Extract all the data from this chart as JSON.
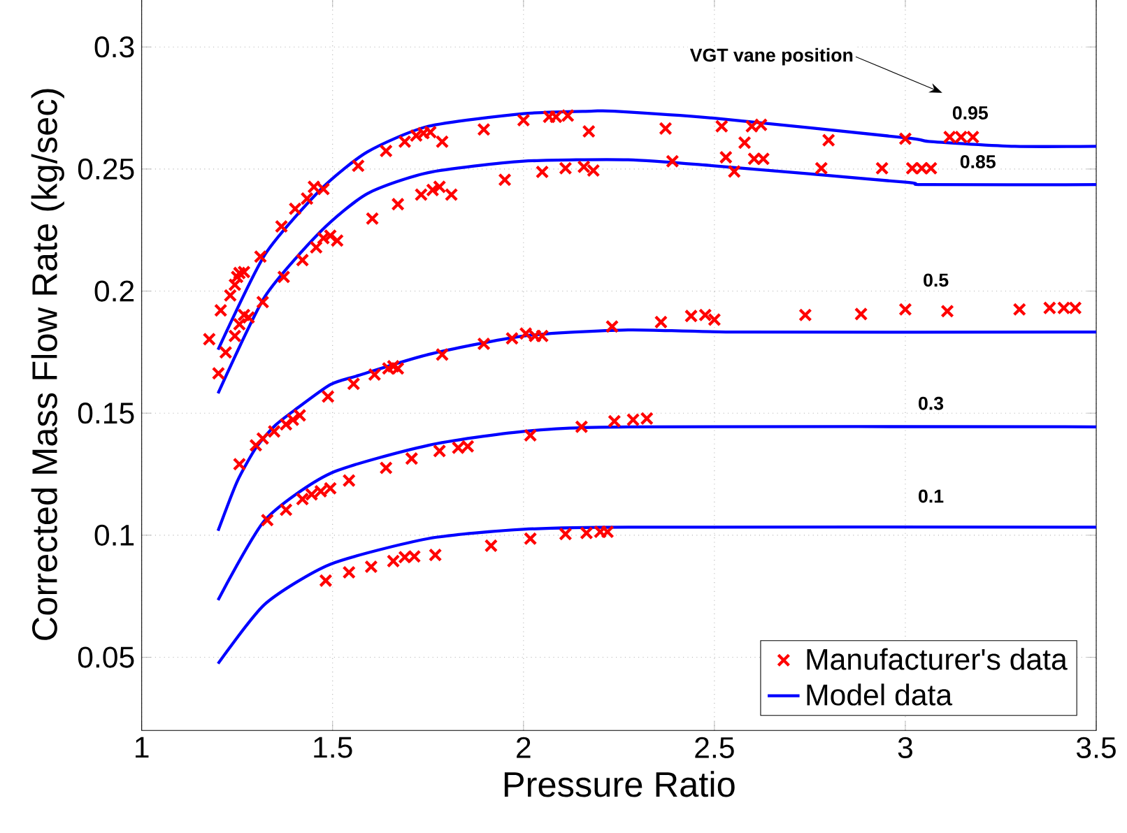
{
  "chart_data": {
    "type": "scatter",
    "xlabel": "Pressure Ratio",
    "ylabel": "Corrected Mass Flow Rate (kg/sec)",
    "xlim": [
      1,
      3.5
    ],
    "xticks": [
      1,
      1.5,
      2,
      2.5,
      3,
      3.5
    ],
    "ylim": [
      0.02,
      0.32
    ],
    "yticks": [
      0.05,
      0.1,
      0.15,
      0.2,
      0.25,
      0.3
    ],
    "grid": true,
    "legend": "bottom right",
    "series": [
      {
        "name": "Manufacturer's data",
        "marker": "cross",
        "color": "#ff0000",
        "x": [
          1.177,
          1.201,
          1.207,
          1.22,
          1.232,
          1.244,
          1.25,
          1.256,
          1.268,
          1.311,
          1.366,
          1.402,
          1.433,
          1.451,
          1.476,
          1.567,
          1.64,
          1.689,
          1.719,
          1.738,
          1.756,
          1.787,
          1.896,
          2.0,
          2.067,
          2.085,
          2.116,
          2.171,
          2.372,
          2.519,
          2.579,
          2.598,
          2.622,
          2.799,
          3.0,
          3.116,
          3.146,
          3.177,
          1.244,
          1.256,
          1.268,
          1.28,
          1.317,
          1.372,
          1.421,
          1.457,
          1.476,
          1.494,
          1.512,
          1.604,
          1.671,
          1.732,
          1.762,
          1.78,
          1.811,
          1.951,
          2.049,
          2.11,
          2.158,
          2.183,
          2.39,
          2.53,
          2.552,
          2.604,
          2.628,
          2.78,
          2.939,
          3.018,
          3.043,
          3.067,
          1.256,
          1.299,
          1.317,
          1.347,
          1.378,
          1.396,
          1.414,
          1.488,
          1.555,
          1.61,
          1.646,
          1.659,
          1.671,
          1.787,
          1.896,
          1.97,
          2.006,
          2.03,
          2.049,
          2.232,
          2.36,
          2.439,
          2.476,
          2.5,
          2.738,
          2.884,
          3.0,
          3.11,
          3.299,
          3.378,
          3.415,
          3.445,
          1.329,
          1.378,
          1.421,
          1.445,
          1.469,
          1.494,
          1.543,
          1.64,
          1.707,
          1.78,
          1.829,
          1.854,
          2.018,
          2.152,
          2.238,
          2.287,
          2.323,
          1.482,
          1.543,
          1.601,
          1.659,
          1.689,
          1.714,
          1.769,
          1.915,
          2.018,
          2.11,
          2.165,
          2.201,
          2.22
        ],
        "values": [
          0.1803,
          0.1663,
          0.1921,
          0.1749,
          0.1982,
          0.2026,
          0.2058,
          0.2074,
          0.2078,
          0.2141,
          0.2265,
          0.2337,
          0.2379,
          0.2427,
          0.2418,
          0.2513,
          0.2574,
          0.2612,
          0.2637,
          0.2647,
          0.2651,
          0.2612,
          0.2662,
          0.27,
          0.2714,
          0.2714,
          0.2719,
          0.2654,
          0.2666,
          0.2675,
          0.2608,
          0.2675,
          0.2681,
          0.2618,
          0.2624,
          0.2631,
          0.2631,
          0.2631,
          0.1816,
          0.1864,
          0.1902,
          0.1892,
          0.1955,
          0.2058,
          0.2127,
          0.2179,
          0.2217,
          0.2227,
          0.2207,
          0.2297,
          0.2356,
          0.2395,
          0.2414,
          0.2427,
          0.2395,
          0.2456,
          0.2488,
          0.2503,
          0.2509,
          0.2494,
          0.2532,
          0.2548,
          0.249,
          0.2542,
          0.2542,
          0.2503,
          0.2503,
          0.2503,
          0.2503,
          0.2503,
          0.1291,
          0.1368,
          0.1396,
          0.1425,
          0.1454,
          0.1473,
          0.1491,
          0.1568,
          0.162,
          0.1658,
          0.1683,
          0.1692,
          0.1683,
          0.174,
          0.1784,
          0.1806,
          0.1826,
          0.1816,
          0.1816,
          0.1855,
          0.1873,
          0.1898,
          0.1902,
          0.1883,
          0.1902,
          0.1906,
          0.1925,
          0.1918,
          0.1925,
          0.1931,
          0.1931,
          0.1931,
          0.1062,
          0.1104,
          0.1148,
          0.1167,
          0.118,
          0.1192,
          0.1224,
          0.1276,
          0.1314,
          0.1345,
          0.1358,
          0.1364,
          0.1409,
          0.1444,
          0.1467,
          0.1473,
          0.1478,
          0.0814,
          0.0848,
          0.0871,
          0.0894,
          0.091,
          0.0913,
          0.0919,
          0.0957,
          0.0986,
          0.1005,
          0.1009,
          0.1014,
          0.1014
        ]
      },
      {
        "name": "Model data",
        "type": "line",
        "color": "#0000ff",
        "line_style": "solid",
        "x": [
          1.2,
          1.323,
          1.47,
          1.591,
          1.75,
          2.0,
          2.177,
          2.238,
          2.5,
          3.0,
          3.067,
          3.287,
          3.5
        ],
        "values": [
          0.176,
          0.215,
          0.2418,
          0.257,
          0.2675,
          0.2727,
          0.2737,
          0.2737,
          0.2708,
          0.2628,
          0.2612,
          0.2593,
          0.2593
        ]
      },
      {
        "type": "line",
        "color": "#0000ff",
        "line_style": "solid",
        "x": [
          1.2,
          1.323,
          1.47,
          1.591,
          1.75,
          2.0,
          2.274,
          2.5,
          3.0,
          3.049,
          3.5
        ],
        "values": [
          0.1581,
          0.1978,
          0.2246,
          0.2399,
          0.2485,
          0.2532,
          0.2538,
          0.2513,
          0.2446,
          0.2436,
          0.2436
        ]
      },
      {
        "type": "line",
        "color": "#0000ff",
        "line_style": "solid",
        "x": [
          1.2,
          1.25,
          1.3,
          1.35,
          1.402,
          1.494,
          1.567,
          1.75,
          2.0,
          2.274,
          2.567,
          3.5
        ],
        "values": [
          0.1018,
          0.122,
          0.136,
          0.145,
          0.1514,
          0.1617,
          0.1654,
          0.174,
          0.1816,
          0.1841,
          0.1832,
          0.1832
        ]
      },
      {
        "type": "line",
        "color": "#0000ff",
        "line_style": "solid",
        "x": [
          1.2,
          1.323,
          1.494,
          1.75,
          2.0,
          2.274,
          3.5
        ],
        "values": [
          0.0734,
          0.1062,
          0.1253,
          0.1368,
          0.1425,
          0.1444,
          0.1444
        ]
      },
      {
        "type": "line",
        "color": "#0000ff",
        "line_style": "solid",
        "x": [
          1.2,
          1.323,
          1.494,
          1.75,
          2.0,
          2.274,
          3.5
        ],
        "values": [
          0.0474,
          0.0718,
          0.0881,
          0.0986,
          0.1024,
          0.1033,
          0.1033
        ]
      }
    ],
    "annotations": [
      "VGT vane position",
      {
        "text": "0.95",
        "x": 3.17,
        "y": 0.273
      },
      {
        "text": "0.85",
        "x": 3.19,
        "y": 0.253
      },
      {
        "text": "0.5",
        "x": 3.08,
        "y": 0.2045
      },
      {
        "text": "0.3",
        "x": 3.067,
        "y": 0.154
      },
      {
        "text": "0.1",
        "x": 3.067,
        "y": 0.116
      }
    ]
  }
}
